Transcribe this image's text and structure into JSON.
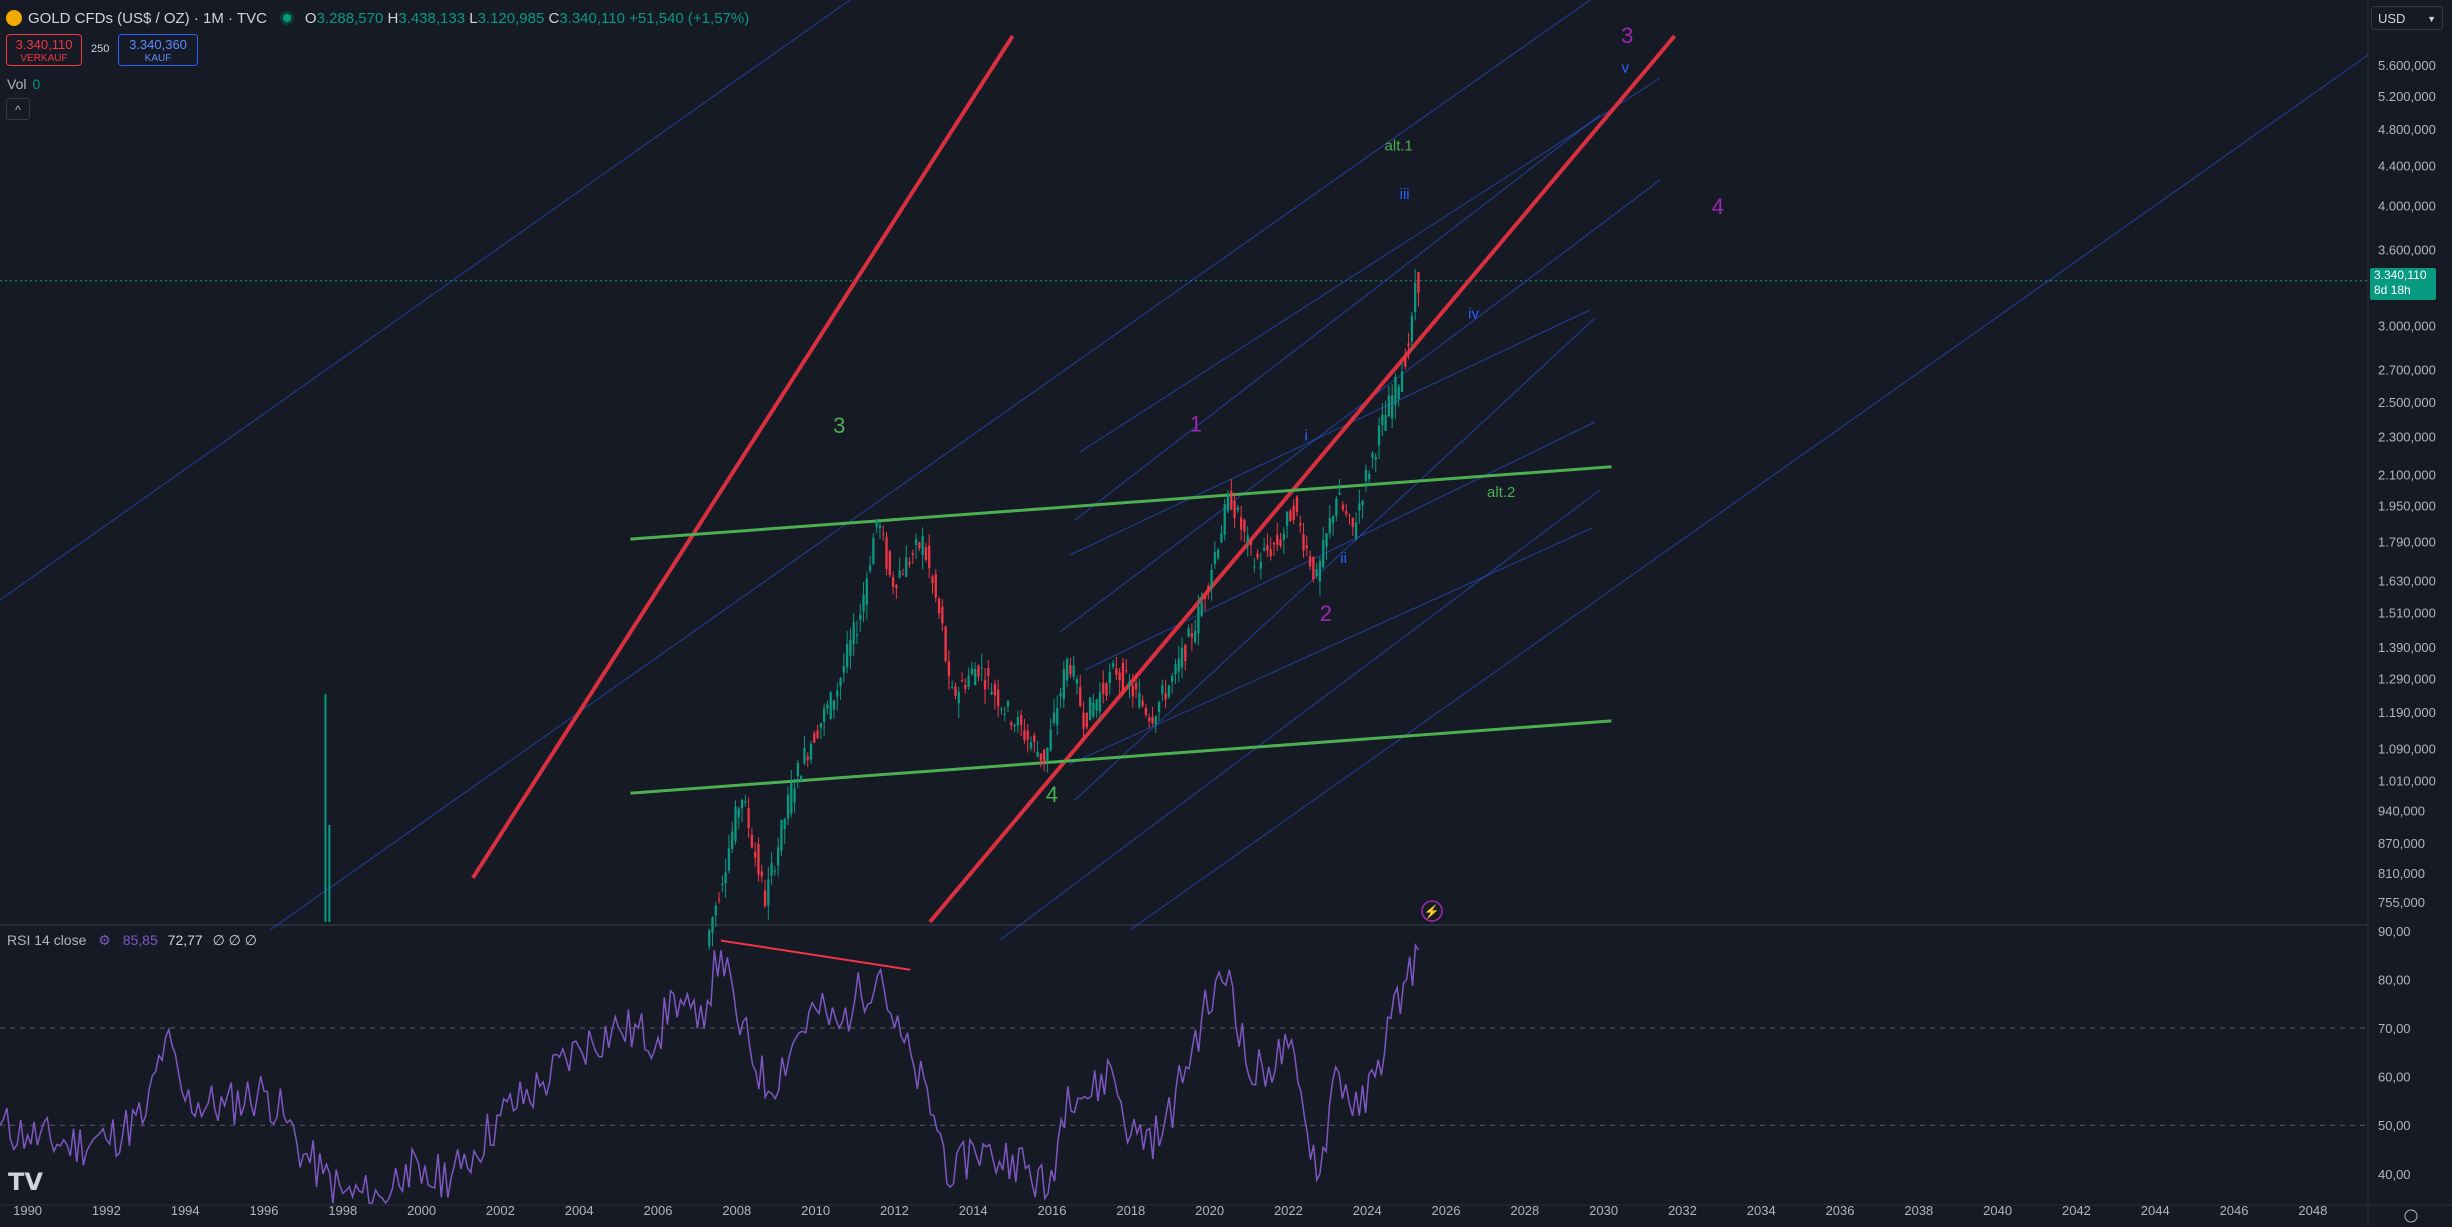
{
  "header": {
    "symbol": "GOLD CFDs (US$ / OZ) · 1M · TVC",
    "open_label": "O",
    "open": "3.288,570",
    "high_label": "H",
    "high": "3.438,133",
    "low_label": "L",
    "low": "3.120,985",
    "close_label": "C",
    "close": "3.340,110",
    "change": "+51,540 (+1,57%)"
  },
  "trade": {
    "sell_price": "3.340,110",
    "sell_label": "VERKAUF",
    "spread": "250",
    "buy_price": "3.340,360",
    "buy_label": "KAUF"
  },
  "volume": {
    "label": "Vol",
    "value": "0"
  },
  "rsi_legend": {
    "label": "RSI 14 close",
    "rsi": "85,85",
    "ma": "72,77",
    "extra": "∅ ∅ ∅"
  },
  "currency": "USD",
  "price_label": {
    "price": "3.340,110",
    "countdown": "8d 18h"
  },
  "colors": {
    "up": "#089981",
    "down": "#f23645",
    "rsi": "#7e57c2",
    "channel_red": "#d8303f",
    "channel_green": "#4caf50",
    "fib_blue": "#2962ff",
    "bg": "#161a25"
  },
  "chart_data": [
    {
      "type": "candlestick",
      "title": "GOLD CFDs (US$ / OZ) · 1M · TVC",
      "y_scale": "log",
      "ylim": [
        720,
        6000
      ],
      "xlim": [
        1989.3,
        2049.4
      ],
      "y_ticks": [
        "5.600,000",
        "5.200,000",
        "4.800,000",
        "4.400,000",
        "4.000,000",
        "3.600,000",
        "3.000,000",
        "2.700,000",
        "2.500,000",
        "2.300,000",
        "2.100,000",
        "1.950,000",
        "1.790,000",
        "1.630,000",
        "1.510,000",
        "1.390,000",
        "1.290,000",
        "1.190,000",
        "1.090,000",
        "1.010,000",
        "940,000",
        "870,000",
        "810,000",
        "755,000"
      ],
      "y_tick_values": [
        5600,
        5200,
        4800,
        4400,
        4000,
        3600,
        3000,
        2700,
        2500,
        2300,
        2100,
        1950,
        1790,
        1630,
        1510,
        1390,
        1290,
        1190,
        1090,
        1010,
        940,
        870,
        810,
        755
      ],
      "x_ticks": [
        "1990",
        "1992",
        "1994",
        "1996",
        "1998",
        "2000",
        "2002",
        "2004",
        "2006",
        "2008",
        "2010",
        "2012",
        "2014",
        "2016",
        "2018",
        "2020",
        "2022",
        "2024",
        "2026",
        "2028",
        "2030",
        "2032",
        "2034",
        "2036",
        "2038",
        "2040",
        "2042",
        "2044",
        "2046",
        "2048"
      ],
      "price_path": [
        [
          2007.3,
          680
        ],
        [
          2008.2,
          980
        ],
        [
          2008.8,
          760
        ],
        [
          2009.5,
          1000
        ],
        [
          2010.0,
          1120
        ],
        [
          2010.6,
          1250
        ],
        [
          2011.2,
          1500
        ],
        [
          2011.65,
          1900
        ],
        [
          2012.0,
          1620
        ],
        [
          2012.8,
          1790
        ],
        [
          2013.3,
          1450
        ],
        [
          2013.5,
          1230
        ],
        [
          2014.2,
          1330
        ],
        [
          2014.9,
          1200
        ],
        [
          2015.9,
          1060
        ],
        [
          2016.5,
          1360
        ],
        [
          2016.9,
          1170
        ],
        [
          2017.7,
          1320
        ],
        [
          2018.6,
          1180
        ],
        [
          2019.2,
          1300
        ],
        [
          2019.8,
          1500
        ],
        [
          2020.6,
          2000
        ],
        [
          2021.2,
          1700
        ],
        [
          2021.9,
          1800
        ],
        [
          2022.2,
          1950
        ],
        [
          2022.8,
          1630
        ],
        [
          2023.3,
          2000
        ],
        [
          2023.7,
          1830
        ],
        [
          2024.0,
          2050
        ],
        [
          2024.4,
          2330
        ],
        [
          2024.9,
          2650
        ],
        [
          2025.2,
          2950
        ],
        [
          2025.3,
          3340
        ]
      ],
      "lines": {
        "red_channel": [
          {
            "x1": 2001.3,
            "y1": 800,
            "x2": 2015.0,
            "y2": 6000
          },
          {
            "x1": 2012.9,
            "y1": 720,
            "x2": 2031.8,
            "y2": 6000
          }
        ],
        "green_channel": [
          {
            "x1": 2005.3,
            "y1": 1800,
            "x2": 2030.2,
            "y2": 2140
          },
          {
            "x1": 2005.3,
            "y1": 980,
            "x2": 2030.2,
            "y2": 1165
          }
        ],
        "rsi_divergence": {
          "x1": 2007.6,
          "y1": 88,
          "x2": 2012.4,
          "y2": 82
        }
      },
      "annotations": [
        {
          "text": "3",
          "x": 2010.6,
          "y": 2320,
          "color": "#4caf50"
        },
        {
          "text": "4",
          "x": 2016.0,
          "y": 960,
          "color": "#4caf50"
        },
        {
          "text": "1",
          "x": 2019.65,
          "y": 2330,
          "color": "#9c27b0"
        },
        {
          "text": "2",
          "x": 2022.95,
          "y": 1480,
          "color": "#9c27b0"
        },
        {
          "text": "3",
          "x": 2030.6,
          "y": 5900,
          "color": "#9c27b0"
        },
        {
          "text": "4",
          "x": 2032.9,
          "y": 3920,
          "color": "#9c27b0"
        },
        {
          "text": "i",
          "x": 2022.45,
          "y": 2280,
          "color": "#2962ff"
        },
        {
          "text": "ii",
          "x": 2023.4,
          "y": 1700,
          "color": "#2962ff"
        },
        {
          "text": "iii",
          "x": 2024.95,
          "y": 4060,
          "color": "#2962ff"
        },
        {
          "text": "iv",
          "x": 2026.7,
          "y": 3050,
          "color": "#2962ff"
        },
        {
          "text": "v",
          "x": 2030.55,
          "y": 5500,
          "color": "#2962ff"
        },
        {
          "text": "alt.1",
          "x": 2024.8,
          "y": 4560,
          "color": "#4caf50"
        },
        {
          "text": "alt.2",
          "x": 2027.4,
          "y": 1990,
          "color": "#4caf50"
        }
      ]
    },
    {
      "type": "line",
      "title": "RSI 14 close",
      "ylim": [
        34,
        91
      ],
      "y_ticks": [
        "90,00",
        "80,00",
        "70,00",
        "60,00",
        "50,00",
        "40,00"
      ],
      "y_tick_values": [
        90,
        80,
        70,
        60,
        50,
        40
      ],
      "levels": [
        70,
        50
      ],
      "x": [
        1989.3,
        1990.0,
        1991.0,
        1992.0,
        1993.0,
        1993.5,
        1994.0,
        1995.0,
        1996.0,
        1996.5,
        1997.0,
        1997.5,
        1998.0,
        1999.0,
        1999.6,
        2000.0,
        2001.0,
        2002.0,
        2003.0,
        2004.0,
        2005.0,
        2006.0,
        2006.4,
        2007.0,
        2007.6,
        2008.0,
        2008.8,
        2009.5,
        2010.0,
        2010.6,
        2011.0,
        2011.65,
        2012.0,
        2012.5,
        2013.0,
        2013.5,
        2014.0,
        2014.5,
        2015.0,
        2015.9,
        2016.4,
        2017.0,
        2017.5,
        2018.0,
        2018.8,
        2019.4,
        2019.8,
        2020.5,
        2021.0,
        2021.5,
        2022.0,
        2022.4,
        2022.8,
        2023.2,
        2023.8,
        2024.2,
        2024.6,
        2025.0,
        2025.3
      ],
      "values": [
        50,
        48,
        46,
        47,
        52,
        68,
        55,
        54,
        57,
        52,
        44,
        40,
        36,
        35,
        42,
        38,
        41,
        52,
        58,
        66,
        70,
        68,
        77,
        70,
        86,
        72,
        57,
        68,
        74,
        70,
        76,
        82,
        70,
        62,
        52,
        38,
        46,
        43,
        44,
        36,
        58,
        56,
        62,
        48,
        48,
        62,
        72,
        82,
        60,
        62,
        66,
        52,
        40,
        62,
        52,
        60,
        72,
        80,
        86
      ]
    }
  ]
}
